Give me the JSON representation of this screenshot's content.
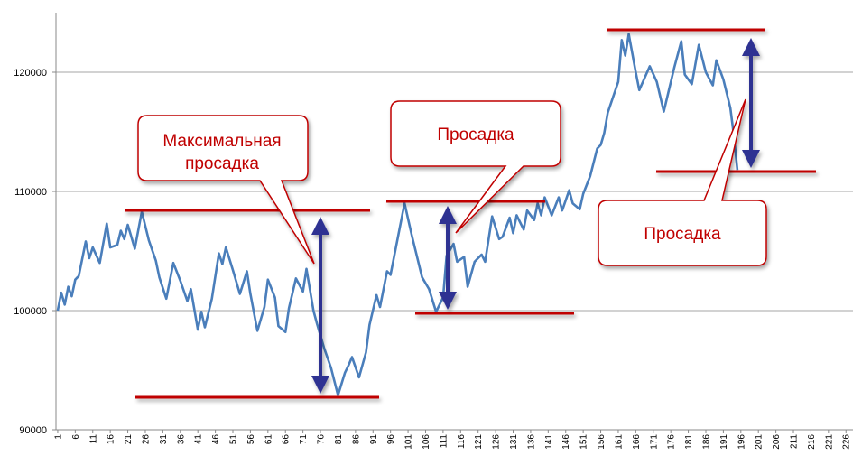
{
  "chart_data": {
    "type": "line",
    "x": [
      1,
      2,
      3,
      4,
      5,
      6,
      7,
      9,
      10,
      11,
      13,
      15,
      16,
      18,
      19,
      20,
      21,
      23,
      25,
      27,
      29,
      30,
      32,
      34,
      36,
      38,
      39,
      41,
      42,
      43,
      45,
      47,
      48,
      49,
      51,
      53,
      55,
      56,
      58,
      60,
      61,
      63,
      64,
      66,
      67,
      69,
      71,
      72,
      74,
      75,
      77,
      79,
      81,
      83,
      84,
      85,
      87,
      89,
      90,
      92,
      93,
      95,
      96,
      100,
      102,
      105,
      107,
      109,
      111,
      112,
      114,
      115,
      117,
      118,
      120,
      122,
      123,
      125,
      127,
      128,
      130,
      131,
      132,
      134,
      135,
      137,
      138,
      139,
      140,
      142,
      144,
      145,
      147,
      148,
      150,
      151,
      153,
      155,
      156,
      157,
      158,
      161,
      162,
      163,
      164,
      166,
      167,
      170,
      172,
      174,
      177,
      179,
      180,
      182,
      184,
      186,
      188,
      189,
      191,
      193,
      194,
      195
    ],
    "series": [
      {
        "color": "#4a7ebb",
        "values": [
          100000,
          101500,
          100500,
          102000,
          101200,
          102600,
          102900,
          105800,
          104400,
          105300,
          104000,
          107300,
          105300,
          105500,
          106700,
          106000,
          107200,
          105200,
          108300,
          105900,
          104200,
          102800,
          101000,
          104000,
          102500,
          100800,
          101800,
          98400,
          99900,
          98600,
          101000,
          104800,
          103900,
          105300,
          103400,
          101400,
          103300,
          101400,
          98300,
          100300,
          102600,
          101100,
          98700,
          98200,
          100200,
          102700,
          101600,
          103500,
          100000,
          98900,
          96900,
          95200,
          92900,
          94800,
          95400,
          96100,
          94400,
          96500,
          98800,
          101300,
          100300,
          103300,
          103000,
          109000,
          106400,
          102800,
          101800,
          99900,
          101100,
          104600,
          105600,
          104100,
          104500,
          102000,
          104100,
          104700,
          104100,
          107900,
          106000,
          106200,
          107800,
          106500,
          108000,
          106800,
          108400,
          107600,
          109000,
          108000,
          109500,
          108000,
          109500,
          108400,
          110100,
          109000,
          108500,
          109800,
          111300,
          113600,
          113900,
          114900,
          116600,
          119200,
          122700,
          121400,
          123200,
          120000,
          118500,
          120500,
          119200,
          116700,
          120400,
          122600,
          119800,
          119000,
          122300,
          120000,
          118900,
          121000,
          119400,
          117000,
          114700,
          111800
        ]
      }
    ],
    "xlim": [
      0.5,
      228
    ],
    "ylim": [
      90000,
      125000
    ],
    "xticks": [
      1,
      6,
      11,
      16,
      21,
      26,
      31,
      36,
      41,
      46,
      51,
      56,
      61,
      66,
      71,
      76,
      81,
      86,
      91,
      96,
      101,
      106,
      111,
      116,
      121,
      126,
      131,
      136,
      141,
      146,
      151,
      156,
      161,
      166,
      171,
      176,
      181,
      186,
      191,
      196,
      201,
      206,
      211,
      216,
      221,
      226
    ],
    "yticks": [
      90000,
      100000,
      110000,
      120000
    ],
    "grid": true,
    "annotations": [
      {
        "lines": [
          "Максимальная",
          "просадка"
        ]
      },
      {
        "lines": [
          "Просадка"
        ]
      },
      {
        "lines": [
          "Просадка"
        ]
      }
    ]
  }
}
